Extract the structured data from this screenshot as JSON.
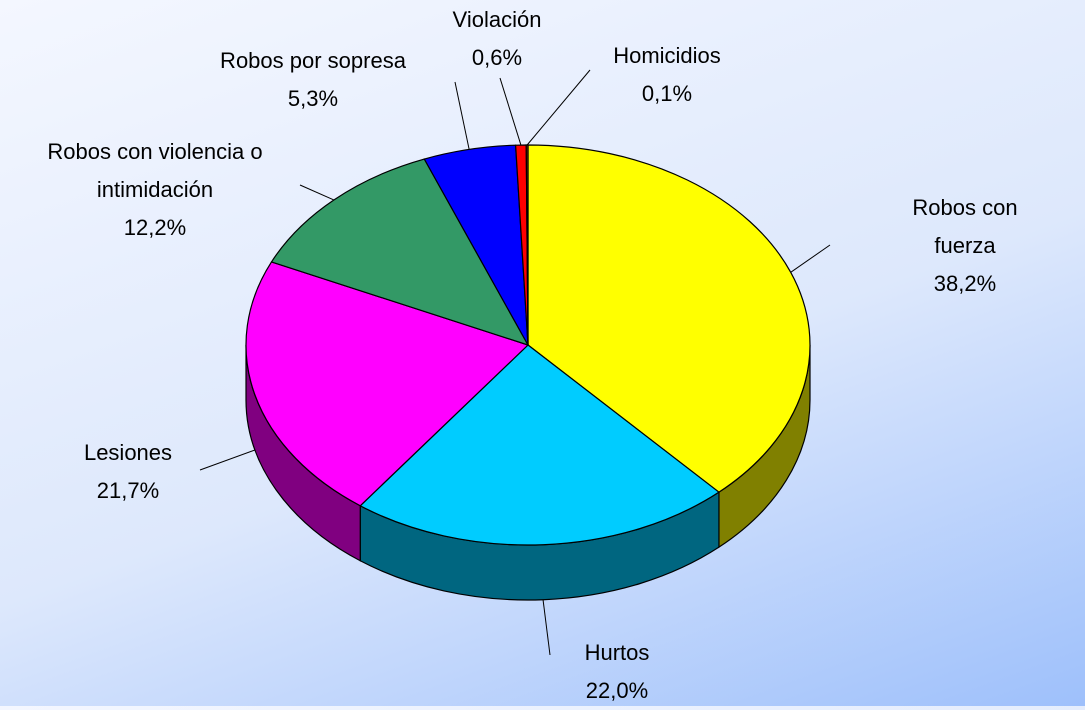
{
  "chart_data": {
    "type": "pie",
    "categories": [
      "Robos con fuerza",
      "Hurtos",
      "Lesiones",
      "Robos con violencia o intimidación",
      "Robos por sopresa",
      "Violación",
      "Homicidios"
    ],
    "values": [
      38.2,
      22.0,
      21.7,
      12.2,
      5.3,
      0.6,
      0.1
    ],
    "value_labels": [
      "38,2%",
      "22,0%",
      "21,7%",
      "12,2%",
      "5,3%",
      "0,6%",
      "0,1%"
    ],
    "colors": [
      "#ffff00",
      "#00ccff",
      "#ff00ff",
      "#339966",
      "#0000ff",
      "#ff0000",
      "#993300"
    ]
  }
}
